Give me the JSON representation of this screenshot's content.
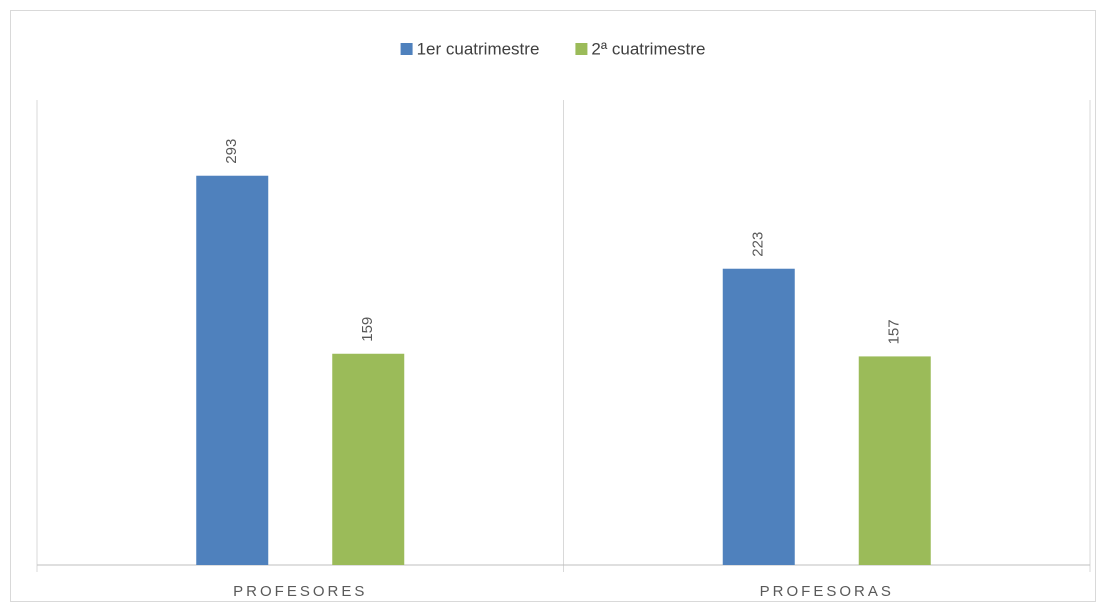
{
  "chart_data": {
    "type": "bar",
    "categories": [
      "PROFESORES",
      "PROFESORAS"
    ],
    "series": [
      {
        "name": "1er cuatrimestre",
        "color": "#4f81bd",
        "values": [
          293,
          223
        ]
      },
      {
        "name": "2ª cuatrimestre",
        "color": "#9bbb59",
        "values": [
          159,
          157
        ]
      }
    ],
    "ylim": [
      0,
      350
    ],
    "legend": "top"
  }
}
